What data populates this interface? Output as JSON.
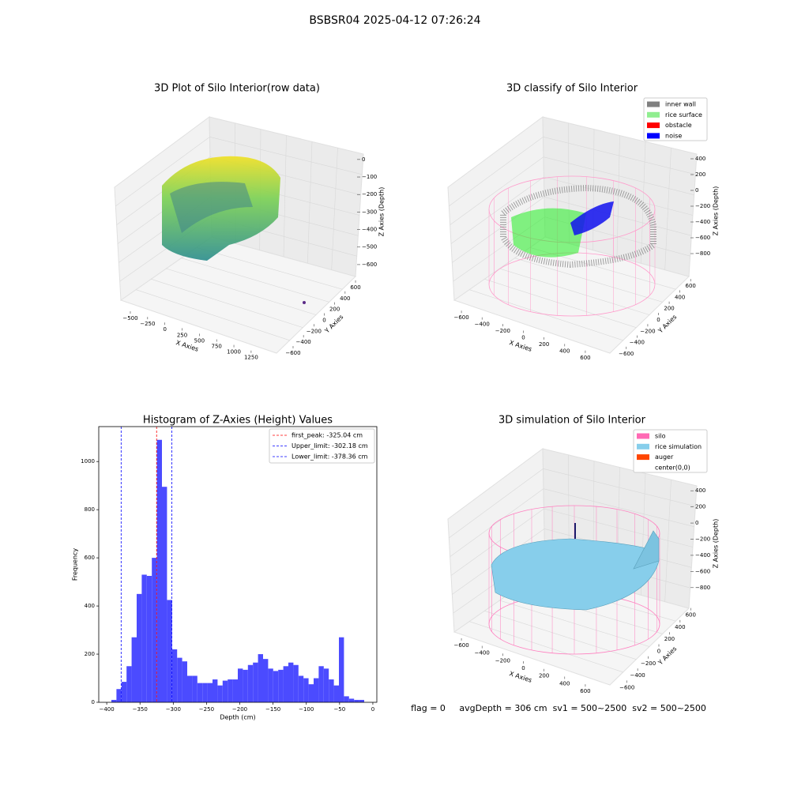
{
  "title": "BSBSR04 2025-04-12 07:26:24",
  "footer": "flag = 0     avgDepth = 306 cm  sv1 = 500~2500  sv2 = 500~2500",
  "chart_data": [
    {
      "type": "scatter3d",
      "title": "3D Plot of Silo Interior(row data)",
      "xlabel": "X Axies",
      "ylabel": "Y Axies",
      "zlabel": "Z Axies (Depth)",
      "xlim": [
        -620,
        1400
      ],
      "ylim": [
        -700,
        700
      ],
      "zlim": [
        -650,
        40
      ],
      "xticks": [
        {
          "value": -500,
          "label": "−500"
        },
        {
          "value": -250,
          "label": "−250"
        },
        0,
        250,
        500,
        750,
        1000,
        1250
      ],
      "yticks": [
        {
          "value": -600,
          "label": "−600"
        },
        {
          "value": -400,
          "label": "−400"
        },
        {
          "value": -200,
          "label": "−200"
        },
        0,
        200,
        400,
        600
      ],
      "zticks": [
        0,
        {
          "value": -100,
          "label": "−100"
        },
        {
          "value": -200,
          "label": "−200"
        },
        {
          "value": -300,
          "label": "−300"
        },
        {
          "value": -400,
          "label": "−400"
        },
        {
          "value": -500,
          "label": "−500"
        },
        {
          "value": -600,
          "label": "−600"
        }
      ]
    },
    {
      "type": "scatter3d",
      "title": "3D classify of Silo Interior",
      "xlabel": "X Axies",
      "ylabel": "Y Axies",
      "zlabel": "Z Axies (Depth)",
      "xlim": [
        -700,
        700
      ],
      "ylim": [
        -700,
        700
      ],
      "zlim": [
        -900,
        500
      ],
      "xticks": [
        {
          "value": -600,
          "label": "−600"
        },
        {
          "value": -400,
          "label": "−400"
        },
        {
          "value": -200,
          "label": "−200"
        },
        0,
        200,
        400,
        600
      ],
      "yticks": [
        {
          "value": -600,
          "label": "−600"
        },
        {
          "value": -400,
          "label": "−400"
        },
        {
          "value": -200,
          "label": "−200"
        },
        0,
        200,
        400,
        600
      ],
      "zticks": [
        400,
        200,
        0,
        {
          "value": -200,
          "label": "−200"
        },
        {
          "value": -400,
          "label": "−400"
        },
        {
          "value": -600,
          "label": "−600"
        },
        {
          "value": -800,
          "label": "−800"
        }
      ],
      "legend": [
        {
          "name": "inner wall",
          "color": "#808080"
        },
        {
          "name": "rice surface",
          "color": "#90ee90"
        },
        {
          "name": "obstacle",
          "color": "#ff0000"
        },
        {
          "name": "noise",
          "color": "#0000ff"
        }
      ]
    },
    {
      "type": "histogram",
      "title": "Histogram of Z-Axies (Height) Values",
      "xlabel": "Depth (cm)",
      "ylabel": "Frequency",
      "color": "#4b4bff",
      "bins": [
        -393,
        -385.4,
        -377.8,
        -370.2,
        -362.6,
        -355,
        -347.4,
        -339.8,
        -332.2,
        -324.6,
        -317,
        -309.4,
        -301.8,
        -294.2,
        -286.6,
        -279,
        -271.4,
        -263.8,
        -256.2,
        -248.6,
        -241,
        -233.4,
        -225.8,
        -218.2,
        -210.6,
        -203,
        -195.4,
        -187.8,
        -180.2,
        -172.6,
        -165,
        -157.4,
        -149.8,
        -142.2,
        -134.6,
        -127,
        -119.4,
        -111.8,
        -104.2,
        -96.6,
        -89,
        -81.4,
        -73.8,
        -66.2,
        -58.6,
        -51,
        -43.4,
        -35.8,
        -28.2,
        -20.6,
        -13
      ],
      "values": [
        10,
        55,
        85,
        150,
        270,
        450,
        530,
        525,
        600,
        1090,
        895,
        425,
        220,
        185,
        170,
        110,
        110,
        80,
        80,
        80,
        95,
        70,
        90,
        95,
        95,
        140,
        135,
        155,
        165,
        200,
        180,
        140,
        130,
        135,
        150,
        165,
        155,
        110,
        100,
        75,
        100,
        150,
        140,
        95,
        70,
        270,
        25,
        15,
        10,
        10
      ],
      "vlines": [
        {
          "name": "first_peak: -325.04 cm",
          "value": -325.04,
          "color": "#ff0000"
        },
        {
          "name": "Upper_limit: -302.18 cm",
          "value": -302.18,
          "color": "#0000ff"
        },
        {
          "name": "Lower_limit: -378.36 cm",
          "value": -378.36,
          "color": "#0000ff"
        }
      ],
      "xlim": [
        -412,
        6
      ],
      "ylim": [
        0,
        1145
      ],
      "xticks": [
        {
          "value": -400,
          "label": "−400"
        },
        {
          "value": -350,
          "label": "−350"
        },
        {
          "value": -300,
          "label": "−300"
        },
        {
          "value": -250,
          "label": "−250"
        },
        {
          "value": -200,
          "label": "−200"
        },
        {
          "value": -150,
          "label": "−150"
        },
        {
          "value": -100,
          "label": "−100"
        },
        {
          "value": -50,
          "label": "−50"
        },
        0
      ],
      "yticks": [
        0,
        200,
        400,
        600,
        800,
        1000
      ],
      "legend_loc": "upper right"
    },
    {
      "type": "surface3d",
      "title": "3D simulation of Silo Interior",
      "xlabel": "X Axies",
      "ylabel": "Y Axies",
      "zlabel": "Z Axies (Depth)",
      "xlim": [
        -700,
        700
      ],
      "ylim": [
        -700,
        700
      ],
      "zlim": [
        -900,
        500
      ],
      "xticks": [
        {
          "value": -600,
          "label": "−600"
        },
        {
          "value": -400,
          "label": "−400"
        },
        {
          "value": -200,
          "label": "−200"
        },
        0,
        200,
        400,
        600
      ],
      "yticks": [
        {
          "value": -600,
          "label": "−600"
        },
        {
          "value": -400,
          "label": "−400"
        },
        {
          "value": -200,
          "label": "−200"
        },
        0,
        200,
        400,
        600
      ],
      "zticks": [
        400,
        200,
        0,
        {
          "value": -200,
          "label": "−200"
        },
        {
          "value": -400,
          "label": "−400"
        },
        {
          "value": -600,
          "label": "−600"
        },
        {
          "value": -800,
          "label": "−800"
        }
      ],
      "legend": [
        {
          "name": "silo",
          "color": "#ff69b4"
        },
        {
          "name": "rice simulation",
          "color": "#87ceeb"
        },
        {
          "name": "auger",
          "color": "#ff4500"
        },
        {
          "name": "center(0,0)",
          "color": "#ffffff"
        }
      ]
    }
  ]
}
